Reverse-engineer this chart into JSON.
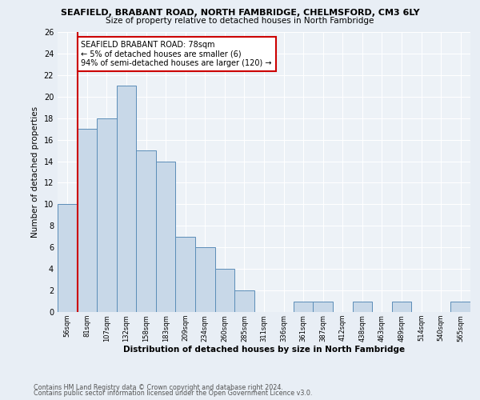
{
  "title1": "SEAFIELD, BRABANT ROAD, NORTH FAMBRIDGE, CHELMSFORD, CM3 6LY",
  "title2": "Size of property relative to detached houses in North Fambridge",
  "xlabel": "Distribution of detached houses by size in North Fambridge",
  "ylabel": "Number of detached properties",
  "bin_labels": [
    "56sqm",
    "81sqm",
    "107sqm",
    "132sqm",
    "158sqm",
    "183sqm",
    "209sqm",
    "234sqm",
    "260sqm",
    "285sqm",
    "311sqm",
    "336sqm",
    "361sqm",
    "387sqm",
    "412sqm",
    "438sqm",
    "463sqm",
    "489sqm",
    "514sqm",
    "540sqm",
    "565sqm"
  ],
  "bar_values": [
    10,
    17,
    18,
    21,
    15,
    14,
    7,
    6,
    4,
    2,
    0,
    0,
    1,
    1,
    0,
    1,
    0,
    1,
    0,
    0,
    1
  ],
  "bar_color": "#c8d8e8",
  "bar_edge_color": "#5b8db8",
  "vline_color": "#cc0000",
  "annotation_text": "SEAFIELD BRABANT ROAD: 78sqm\n← 5% of detached houses are smaller (6)\n94% of semi-detached houses are larger (120) →",
  "annotation_box_color": "#ffffff",
  "annotation_box_edge": "#cc0000",
  "ylim": [
    0,
    26
  ],
  "yticks": [
    0,
    2,
    4,
    6,
    8,
    10,
    12,
    14,
    16,
    18,
    20,
    22,
    24,
    26
  ],
  "footer1": "Contains HM Land Registry data © Crown copyright and database right 2024.",
  "footer2": "Contains public sector information licensed under the Open Government Licence v3.0.",
  "bg_color": "#e8eef5",
  "plot_bg_color": "#edf2f7"
}
